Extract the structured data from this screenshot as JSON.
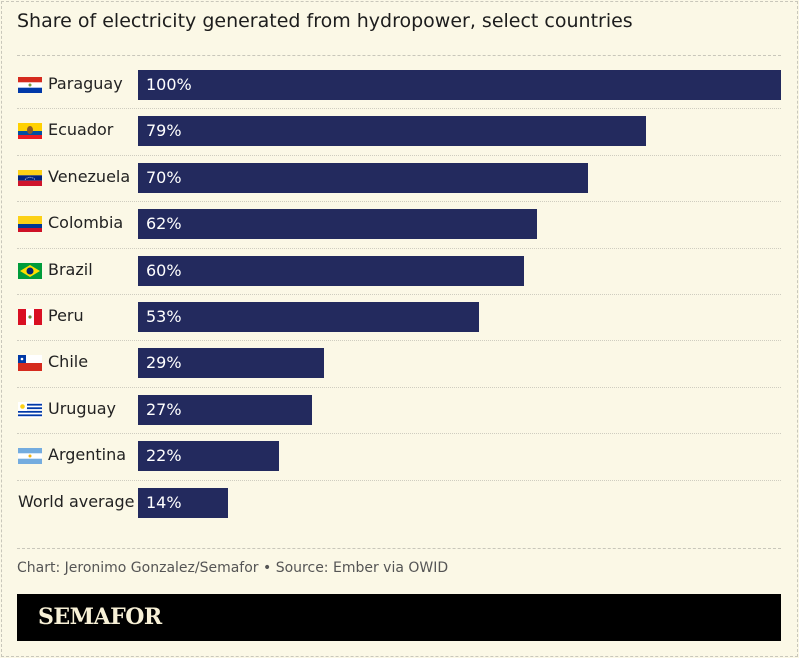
{
  "chart_data": {
    "type": "bar",
    "orientation": "horizontal",
    "title": "Share of electricity generated from hydropower, select countries",
    "categories": [
      "Paraguay",
      "Ecuador",
      "Venezuela",
      "Colombia",
      "Brazil",
      "Peru",
      "Chile",
      "Uruguay",
      "Argentina",
      "World average"
    ],
    "values": [
      100,
      79,
      70,
      62,
      60,
      53,
      29,
      27,
      22,
      14
    ],
    "value_labels": [
      "100%",
      "79%",
      "70%",
      "62%",
      "60%",
      "53%",
      "29%",
      "27%",
      "22%",
      "14%"
    ],
    "flags": [
      "paraguay-flag",
      "ecuador-flag",
      "venezuela-flag",
      "colombia-flag",
      "brazil-flag",
      "peru-flag",
      "chile-flag",
      "uruguay-flag",
      "argentina-flag",
      null
    ],
    "xlim": [
      0,
      100
    ],
    "unit": "%",
    "bar_color": "#232a5e",
    "background_color": "#fbf8e6"
  },
  "footer": {
    "credit": "Chart: Jeronimo Gonzalez/Semafor • Source: Ember via OWID"
  },
  "brand": {
    "logo": "SEMAFOR"
  }
}
